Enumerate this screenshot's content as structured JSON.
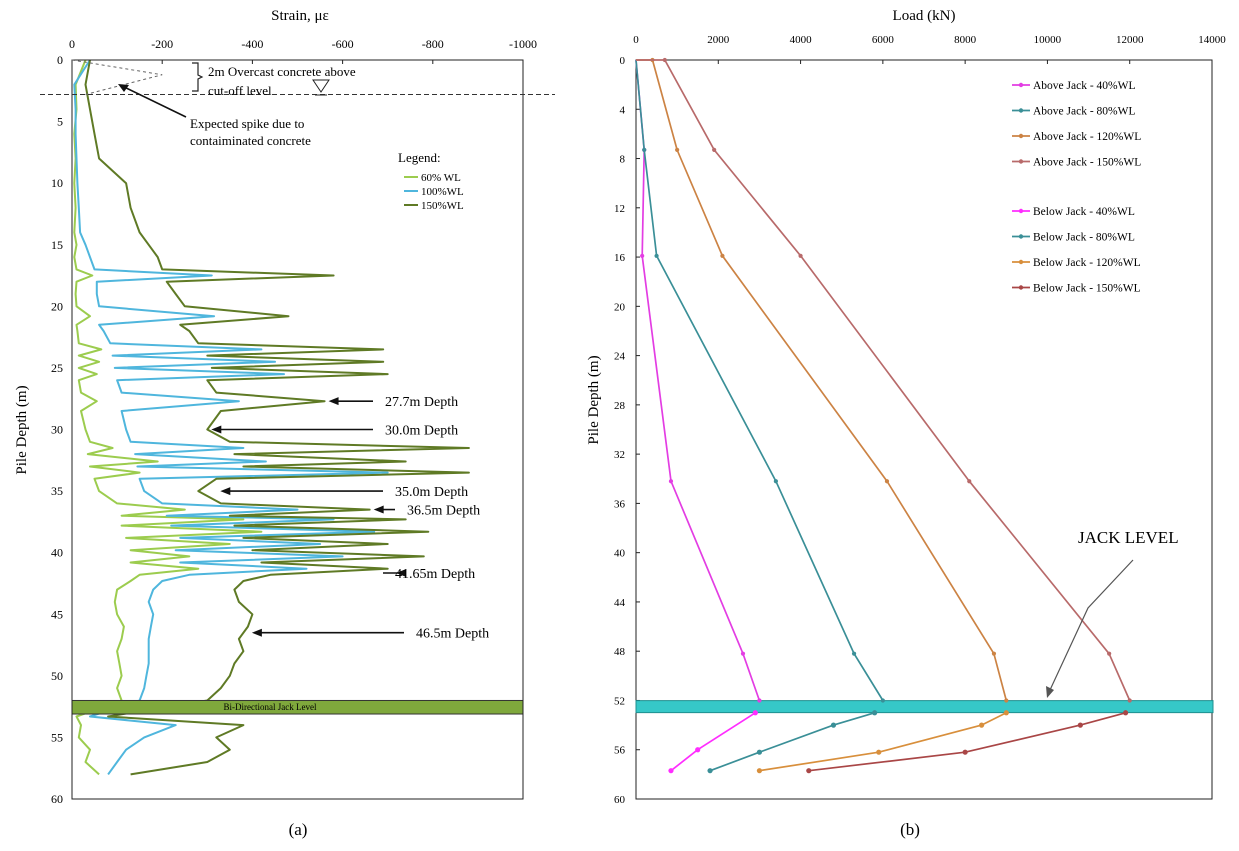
{
  "colors": {
    "wl60": "#9ccc4e",
    "wl100": "#4fb6dd",
    "wl150": "#5f7a25",
    "jack_band_a": "#7fa83c",
    "jack_band_b": "#36c8c8",
    "above40": "#e33de3",
    "above80": "#3a8f97",
    "above120": "#cc8344",
    "above150": "#b86a6a",
    "below40": "#ff2dff",
    "below80": "#3a8f97",
    "below120": "#d88f3c",
    "below150": "#a94646"
  },
  "panel_labels": {
    "a": "(a)",
    "b": "(b)"
  },
  "chart_data": [
    {
      "type": "line",
      "id": "strain",
      "title": "Strain, με",
      "ylabel": "Pile Depth (m)",
      "xlim": [
        0,
        -1000
      ],
      "ylim": [
        0,
        60
      ],
      "xticks": [
        0,
        -200,
        -400,
        -600,
        -800,
        -1000
      ],
      "yticks": [
        0,
        5,
        10,
        15,
        20,
        25,
        30,
        35,
        40,
        45,
        50,
        55,
        60
      ],
      "legend_title": "Legend:",
      "legend": [
        "60% WL",
        "100%WL",
        "150%WL"
      ],
      "jack_band": {
        "label": "Bi-Directional Jack Level",
        "depth_top": 52.0,
        "depth_bottom": 53.1
      },
      "overcast_note": "2m Overcast concrete above cut-off level",
      "overcast_depth": 2.8,
      "spike_note": "Expected spike due to contaiminated concrete",
      "annotations": [
        {
          "text": "27.7m Depth",
          "depth": 27.7,
          "strain": -560
        },
        {
          "text": "30.0m Depth",
          "depth": 30.0,
          "strain": -300
        },
        {
          "text": "35.0m Depth",
          "depth": 35.0,
          "strain": -320
        },
        {
          "text": "36.5m Depth",
          "depth": 36.5,
          "strain": -660
        },
        {
          "text": "41.65m Depth",
          "depth": 41.65,
          "strain": -710
        },
        {
          "text": "46.5m Depth",
          "depth": 46.5,
          "strain": -390
        }
      ],
      "expected_spike": {
        "depth": [
          0,
          1.2,
          2.8
        ],
        "strain": [
          0,
          -200,
          -30
        ]
      },
      "series": [
        {
          "name": "60% WL",
          "depth": [
            0,
            2,
            4,
            6,
            8,
            10,
            12,
            14,
            15,
            16,
            17,
            17.5,
            18,
            19,
            20,
            20.8,
            21.5,
            22,
            23,
            23.5,
            24,
            24.5,
            25,
            25.5,
            26,
            27,
            27.7,
            28.5,
            30,
            31,
            31.5,
            32,
            32.6,
            33,
            33.5,
            34,
            35,
            36,
            36.5,
            37,
            37.3,
            37.8,
            38.3,
            38.8,
            39.3,
            39.8,
            40.3,
            40.8,
            41.3,
            41.8,
            42.3,
            43,
            44,
            45,
            46,
            47,
            48,
            49,
            50,
            51,
            52,
            53.3,
            54,
            55,
            56,
            57,
            58
          ],
          "strain": [
            -30,
            -8,
            -10,
            -5,
            -8,
            -5,
            -8,
            -5,
            -10,
            -5,
            -10,
            -45,
            -10,
            -8,
            -10,
            -40,
            -10,
            -12,
            -15,
            -65,
            -15,
            -60,
            -15,
            -55,
            -15,
            -20,
            -55,
            -20,
            -30,
            -40,
            -90,
            -35,
            -190,
            -40,
            -150,
            -50,
            -60,
            -100,
            -250,
            -110,
            -380,
            -110,
            -420,
            -120,
            -350,
            -130,
            -260,
            -130,
            -280,
            -150,
            -130,
            -100,
            -95,
            -100,
            -115,
            -110,
            -100,
            -105,
            -110,
            -100,
            -110,
            -10,
            -20,
            -15,
            -40,
            -30,
            -60
          ]
        },
        {
          "name": "100%WL",
          "depth": [
            0,
            2,
            4,
            6,
            8,
            10,
            12,
            14,
            15,
            16,
            17,
            17.5,
            18,
            19,
            20,
            20.8,
            21.5,
            22,
            23,
            23.5,
            24,
            24.5,
            25,
            25.5,
            26,
            27,
            27.7,
            28.5,
            30,
            31,
            31.5,
            32,
            32.6,
            33,
            33.5,
            34,
            35,
            36,
            36.5,
            37,
            37.3,
            37.8,
            38.3,
            38.8,
            39.3,
            39.8,
            40.3,
            40.8,
            41.3,
            41.8,
            42.3,
            43,
            44,
            45,
            46,
            47,
            48,
            49,
            50,
            51,
            52,
            53.3,
            54,
            55,
            56,
            57,
            58
          ],
          "strain": [
            -40,
            -5,
            -8,
            -8,
            -10,
            -12,
            -15,
            -18,
            -30,
            -40,
            -50,
            -310,
            -55,
            -55,
            -60,
            -315,
            -60,
            -70,
            -85,
            -420,
            -90,
            -450,
            -95,
            -470,
            -100,
            -110,
            -370,
            -110,
            -120,
            -130,
            -380,
            -140,
            -430,
            -145,
            -700,
            -150,
            -160,
            -200,
            -500,
            -210,
            -580,
            -220,
            -670,
            -240,
            -550,
            -230,
            -600,
            -240,
            -520,
            -260,
            -200,
            -180,
            -170,
            -180,
            -175,
            -170,
            -170,
            -170,
            -165,
            -160,
            -150,
            -40,
            -230,
            -160,
            -120,
            -100,
            -80
          ]
        },
        {
          "name": "150%WL",
          "depth": [
            0,
            2,
            4,
            6,
            8,
            10,
            12,
            14,
            15,
            16,
            17,
            17.5,
            18,
            19,
            20,
            20.8,
            21.5,
            22,
            23,
            23.5,
            24,
            24.5,
            25,
            25.5,
            26,
            27,
            27.7,
            28.5,
            30,
            31,
            31.5,
            32,
            32.6,
            33,
            33.5,
            34,
            35,
            36,
            36.5,
            37,
            37.3,
            37.8,
            38.3,
            38.8,
            39.3,
            39.8,
            40.3,
            40.8,
            41.3,
            41.8,
            42.3,
            43,
            44,
            45,
            46,
            47,
            48,
            49,
            50,
            51,
            52,
            53.3,
            54,
            55,
            56,
            57,
            58
          ],
          "strain": [
            -40,
            -30,
            -40,
            -50,
            -60,
            -120,
            -130,
            -150,
            -170,
            -190,
            -200,
            -580,
            -210,
            -230,
            -250,
            -480,
            -240,
            -260,
            -280,
            -690,
            -300,
            -690,
            -310,
            -700,
            -300,
            -320,
            -560,
            -330,
            -300,
            -350,
            -880,
            -360,
            -740,
            -380,
            -880,
            -320,
            -280,
            -330,
            -660,
            -350,
            -740,
            -360,
            -790,
            -380,
            -700,
            -400,
            -780,
            -420,
            -700,
            -440,
            -380,
            -360,
            -370,
            -400,
            -390,
            -370,
            -380,
            -360,
            -350,
            -330,
            -300,
            -80,
            -380,
            -320,
            -350,
            -300,
            -130
          ]
        }
      ]
    },
    {
      "type": "line",
      "id": "load",
      "title": "Load (kN)",
      "ylabel": "Pile Depth (m)",
      "xlim": [
        0,
        14000
      ],
      "ylim": [
        0,
        60
      ],
      "xticks": [
        0,
        2000,
        4000,
        6000,
        8000,
        10000,
        12000,
        14000
      ],
      "yticks": [
        0,
        4,
        8,
        12,
        16,
        20,
        24,
        28,
        32,
        36,
        40,
        44,
        48,
        52,
        56,
        60
      ],
      "jack_level": {
        "label": "JACK LEVEL",
        "depth": 52.5
      },
      "series": [
        {
          "name": "Above Jack - 40%WL",
          "load": [
            0,
            200,
            150,
            850,
            2600,
            3000
          ],
          "depth": [
            0,
            7.3,
            15.9,
            34.2,
            48.2,
            52
          ]
        },
        {
          "name": "Above Jack - 80%WL",
          "load": [
            0,
            200,
            500,
            3400,
            5300,
            6000
          ],
          "depth": [
            0,
            7.3,
            15.9,
            34.2,
            48.2,
            52
          ]
        },
        {
          "name": "Above Jack - 120%WL",
          "load": [
            0,
            400,
            1000,
            2100,
            6100,
            8700,
            9000
          ],
          "depth": [
            0,
            0,
            7.3,
            15.9,
            34.2,
            48.2,
            52
          ]
        },
        {
          "name": "Above Jack - 150%WL",
          "load": [
            0,
            700,
            1900,
            4000,
            8100,
            11500,
            12000
          ],
          "depth": [
            0,
            0,
            7.3,
            15.9,
            34.2,
            48.2,
            52
          ]
        },
        {
          "name": "Below Jack - 40%WL",
          "load": [
            2900,
            1500,
            850
          ],
          "depth": [
            53,
            56,
            57.7
          ]
        },
        {
          "name": "Below Jack - 80%WL",
          "load": [
            5800,
            4800,
            3000,
            1800
          ],
          "depth": [
            53,
            54,
            56.2,
            57.7
          ]
        },
        {
          "name": "Below Jack - 120%WL",
          "load": [
            9000,
            8400,
            5900,
            3000
          ],
          "depth": [
            53,
            54,
            56.2,
            57.7
          ]
        },
        {
          "name": "Below Jack - 150%WL",
          "load": [
            11900,
            10800,
            8000,
            4200
          ],
          "depth": [
            53,
            54,
            56.2,
            57.7
          ]
        }
      ]
    }
  ]
}
